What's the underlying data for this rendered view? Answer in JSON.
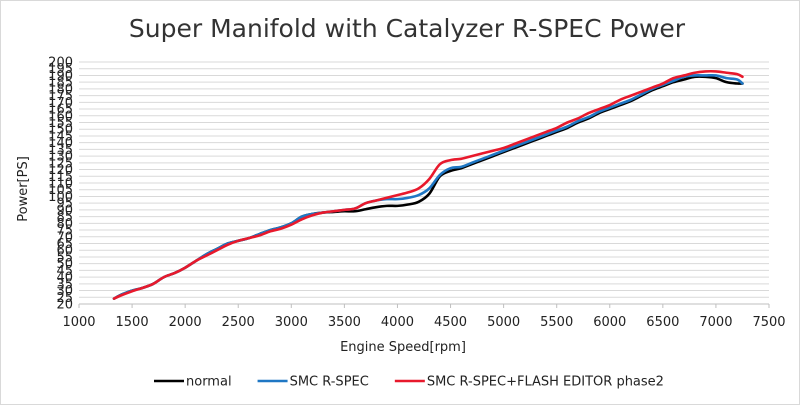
{
  "chart_data": {
    "type": "line",
    "title": "Super Manifold with Catalyzer R-SPEC Power",
    "xlabel": "Engine Speed[rpm]",
    "ylabel": "Power[PS]",
    "xlim": [
      1000,
      7500
    ],
    "ylim": [
      20,
      200
    ],
    "x_ticks": [
      "1000",
      "1500",
      "2000",
      "2500",
      "3000",
      "3500",
      "4000",
      "4500",
      "5000",
      "5500",
      "6000",
      "6500",
      "7000",
      "7500"
    ],
    "y_ticks": [
      "20",
      "25",
      "30",
      "35",
      "40",
      "45",
      "50",
      "55",
      "60",
      "65",
      "70",
      "75",
      "80",
      "85",
      "90",
      "95",
      "100",
      "105",
      "110",
      "115",
      "120",
      "125",
      "130",
      "135",
      "140",
      "145",
      "150",
      "155",
      "160",
      "165",
      "170",
      "175",
      "180",
      "185",
      "190",
      "195",
      "200"
    ],
    "grid": "horizontal",
    "legend_position": "bottom",
    "x": [
      1330,
      1400,
      1500,
      1600,
      1700,
      1800,
      1900,
      2000,
      2100,
      2200,
      2300,
      2400,
      2500,
      2600,
      2700,
      2800,
      2900,
      3000,
      3100,
      3200,
      3300,
      3400,
      3500,
      3600,
      3700,
      3800,
      3900,
      4000,
      4100,
      4200,
      4300,
      4400,
      4500,
      4600,
      4700,
      4800,
      4900,
      5000,
      5100,
      5200,
      5300,
      5400,
      5500,
      5600,
      5700,
      5800,
      5900,
      6000,
      6100,
      6200,
      6300,
      6400,
      6500,
      6600,
      6700,
      6800,
      6900,
      7000,
      7100,
      7200,
      7250
    ],
    "series": [
      {
        "name": "normal",
        "color": "#000000",
        "values": [
          24,
          27,
          30,
          32,
          35,
          40,
          43,
          47,
          52,
          57,
          61,
          65,
          67,
          69,
          72,
          75,
          77,
          80,
          85,
          87,
          88,
          88.5,
          89,
          89,
          90.5,
          92,
          93,
          93,
          94,
          96,
          102,
          115,
          119,
          121,
          124,
          127,
          130,
          133,
          136,
          139,
          142,
          145,
          148,
          151,
          155,
          158,
          162,
          165,
          168,
          171,
          175,
          179,
          182,
          185,
          187,
          189,
          189,
          188,
          185,
          184,
          184
        ]
      },
      {
        "name": "SMC R-SPEC",
        "color": "#1f77c4",
        "values": [
          24,
          27,
          30,
          32,
          35,
          40,
          43,
          47,
          52,
          57,
          61,
          65,
          67,
          69,
          72,
          75,
          77,
          80,
          85,
          87,
          88,
          89,
          90,
          91,
          95,
          97,
          98,
          98,
          99,
          101,
          106,
          116,
          121,
          122,
          125,
          128,
          131,
          134,
          137,
          140,
          143,
          146,
          149,
          152,
          156,
          159,
          163,
          166,
          169,
          172,
          176,
          180,
          183,
          186,
          189,
          190,
          190,
          190,
          188,
          187,
          184
        ]
      },
      {
        "name": "SMC R-SPEC+FLASH EDITOR phase2",
        "color": "#e8192c",
        "values": [
          24,
          26.5,
          29.5,
          32,
          35,
          40,
          43,
          47,
          52,
          56,
          60,
          64,
          67,
          69,
          71,
          74,
          76,
          79,
          83,
          86,
          88,
          89,
          90,
          91,
          95,
          97,
          99,
          101,
          103,
          106,
          113,
          124,
          127,
          128,
          130,
          132,
          134,
          136,
          139,
          142,
          145,
          148,
          151,
          155,
          158,
          162,
          165,
          168,
          172,
          175,
          178,
          181,
          184,
          188,
          190,
          192,
          193,
          193,
          192,
          191,
          189
        ]
      }
    ]
  }
}
